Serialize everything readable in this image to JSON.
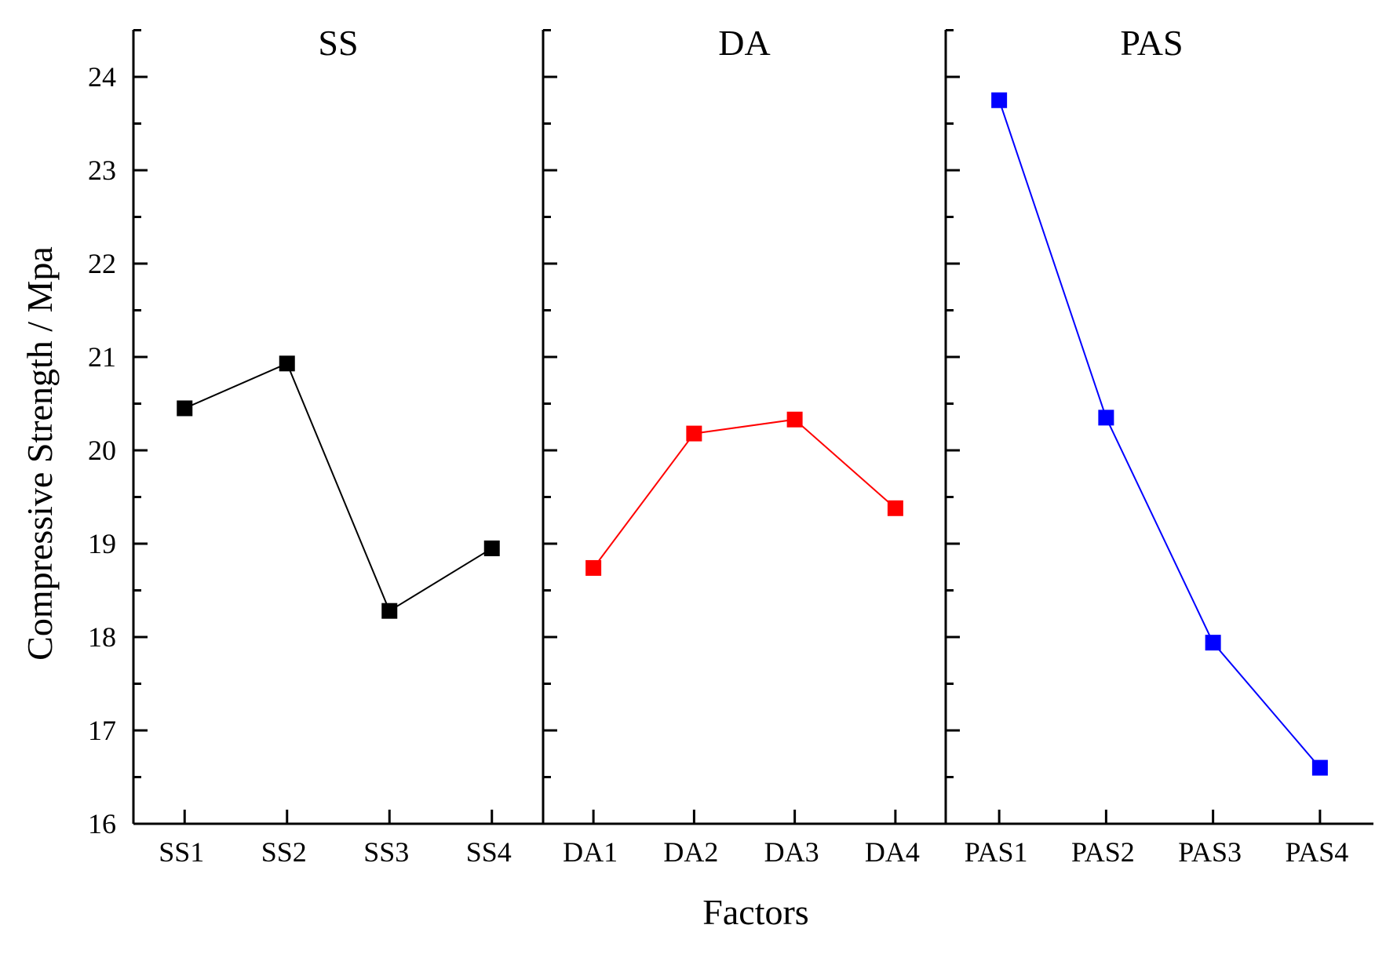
{
  "chart_data": {
    "type": "line",
    "xlabel": "Factors",
    "ylabel": "Compressive Strength / Mpa",
    "ylim": [
      16,
      24.5
    ],
    "yticks": [
      16,
      17,
      18,
      19,
      20,
      21,
      22,
      23,
      24
    ],
    "panels": [
      {
        "title": "SS",
        "color": "#000000",
        "categories": [
          "SS1",
          "SS2",
          "SS3",
          "SS4"
        ],
        "values": [
          20.45,
          20.93,
          18.28,
          18.95
        ]
      },
      {
        "title": "DA",
        "color": "#ff0000",
        "categories": [
          "DA1",
          "DA2",
          "DA3",
          "DA4"
        ],
        "values": [
          18.74,
          20.18,
          20.33,
          19.38
        ]
      },
      {
        "title": "PAS",
        "color": "#0000ff",
        "categories": [
          "PAS1",
          "PAS2",
          "PAS3",
          "PAS4"
        ],
        "values": [
          23.75,
          20.35,
          17.94,
          16.6
        ]
      }
    ]
  }
}
